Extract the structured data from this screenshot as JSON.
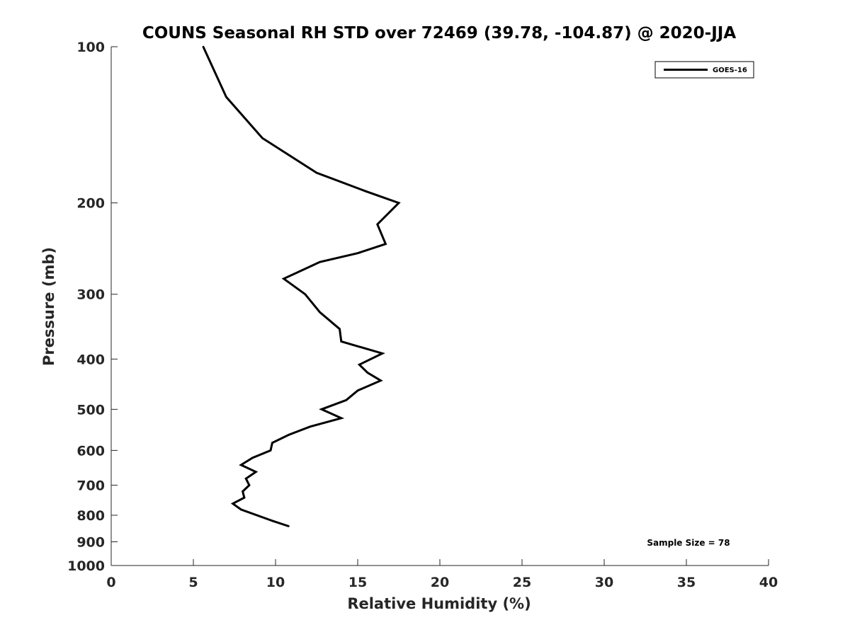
{
  "chart_data": {
    "type": "line",
    "title": "COUNS Seasonal RH STD over 72469 (39.78, -104.87) @ 2020-JJA",
    "xlabel": "Relative Humidity (%)",
    "ylabel": "Pressure (mb)",
    "xlim": [
      0,
      40
    ],
    "ylim": [
      100,
      1000
    ],
    "y_scale": "log",
    "y_reversed": true,
    "x_ticks": [
      0,
      5,
      10,
      15,
      20,
      25,
      30,
      35,
      40
    ],
    "x_tick_labels": [
      "0",
      "5",
      "10",
      "15",
      "20",
      "25",
      "30",
      "35",
      "40"
    ],
    "y_ticks": [
      100,
      200,
      300,
      400,
      500,
      600,
      700,
      800,
      900,
      1000
    ],
    "y_tick_labels": [
      "100",
      "200",
      "300",
      "400",
      "500",
      "600",
      "700",
      "800",
      "900",
      "1000"
    ],
    "grid": false,
    "legend_position": "top-right",
    "series": [
      {
        "name": "GOES-16",
        "color": "#000000",
        "points": [
          {
            "x": 5.6,
            "p": 100
          },
          {
            "x": 7.0,
            "p": 125
          },
          {
            "x": 9.2,
            "p": 150
          },
          {
            "x": 12.5,
            "p": 175
          },
          {
            "x": 15.5,
            "p": 190
          },
          {
            "x": 17.5,
            "p": 200
          },
          {
            "x": 16.2,
            "p": 220
          },
          {
            "x": 16.7,
            "p": 240
          },
          {
            "x": 15.0,
            "p": 250
          },
          {
            "x": 12.7,
            "p": 260
          },
          {
            "x": 10.5,
            "p": 280
          },
          {
            "x": 11.8,
            "p": 300
          },
          {
            "x": 12.7,
            "p": 325
          },
          {
            "x": 13.9,
            "p": 350
          },
          {
            "x": 14.0,
            "p": 370
          },
          {
            "x": 16.5,
            "p": 390
          },
          {
            "x": 15.1,
            "p": 410
          },
          {
            "x": 15.6,
            "p": 425
          },
          {
            "x": 16.4,
            "p": 440
          },
          {
            "x": 15.0,
            "p": 460
          },
          {
            "x": 14.3,
            "p": 480
          },
          {
            "x": 12.8,
            "p": 500
          },
          {
            "x": 14.0,
            "p": 520
          },
          {
            "x": 12.1,
            "p": 540
          },
          {
            "x": 10.8,
            "p": 560
          },
          {
            "x": 9.8,
            "p": 580
          },
          {
            "x": 9.7,
            "p": 600
          },
          {
            "x": 8.6,
            "p": 620
          },
          {
            "x": 7.9,
            "p": 640
          },
          {
            "x": 8.8,
            "p": 660
          },
          {
            "x": 8.2,
            "p": 680
          },
          {
            "x": 8.4,
            "p": 700
          },
          {
            "x": 8.0,
            "p": 720
          },
          {
            "x": 8.1,
            "p": 740
          },
          {
            "x": 7.4,
            "p": 760
          },
          {
            "x": 7.9,
            "p": 780
          },
          {
            "x": 9.8,
            "p": 820
          },
          {
            "x": 10.8,
            "p": 840
          }
        ]
      }
    ],
    "annotation": "Sample Size = 78"
  }
}
